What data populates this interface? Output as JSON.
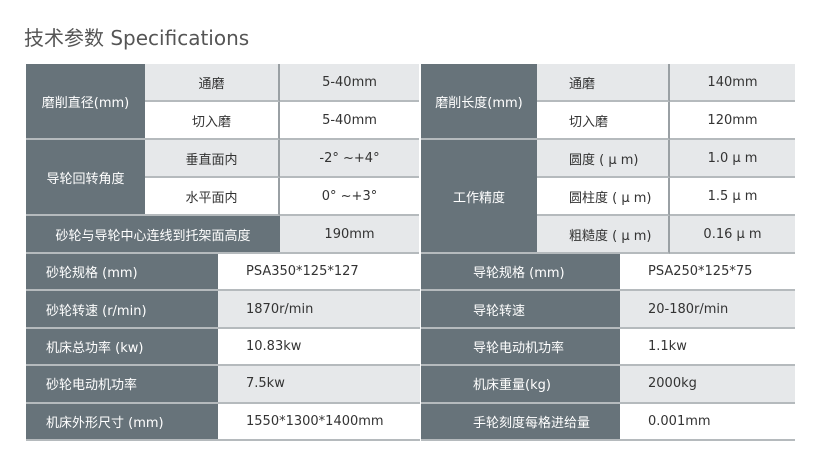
{
  "title": "技术参数 Specifications",
  "colors": {
    "header": "#67737a",
    "light": "#e6e8ea"
  },
  "top_left": {
    "dia_label": "磨削直径(mm)",
    "dia_rows": [
      {
        "sub": "通磨",
        "val": "5-40mm"
      },
      {
        "sub": "切入磨",
        "val": "5-40mm"
      }
    ],
    "angle_label": "导轮回转角度",
    "angle_rows": [
      {
        "sub": "垂直面内",
        "val": "-2° ~+4°"
      },
      {
        "sub": "水平面内",
        "val": "0° ~+3°"
      }
    ],
    "height_label": "砂轮与导轮中心连线到托架面高度",
    "height_val": "190mm"
  },
  "top_right": {
    "len_label": "磨削长度(mm)",
    "len_rows": [
      {
        "sub": "通磨",
        "val": "140mm"
      },
      {
        "sub": "切入磨",
        "val": "120mm"
      }
    ],
    "prec_label": "工作精度",
    "prec_rows": [
      {
        "sub": "圆度 ( μ m)",
        "val": "1.0 μ m"
      },
      {
        "sub": "圆柱度 ( μ m)",
        "val": "1.5 μ m"
      },
      {
        "sub": "粗糙度 ( μ m)",
        "val": "0.16 μ m"
      }
    ]
  },
  "bottom": [
    {
      "l": "砂轮规格 (mm)",
      "lv": "PSA350*125*127",
      "r": "导轮规格 (mm)",
      "rv": "PSA250*125*75"
    },
    {
      "l": "砂轮转速 (r/min)",
      "lv": "1870r/min",
      "r": "导轮转速",
      "rv": "20-180r/min"
    },
    {
      "l": "机床总功率 (kw)",
      "lv": "10.83kw",
      "r": "导轮电动机功率",
      "rv": "1.1kw"
    },
    {
      "l": "砂轮电动机功率",
      "lv": "7.5kw",
      "r": "机床重量(kg)",
      "rv": "2000kg"
    },
    {
      "l": "机床外形尺寸 (mm)",
      "lv": "1550*1300*1400mm",
      "r": "手轮刻度每格进给量",
      "rv": "0.001mm"
    }
  ]
}
